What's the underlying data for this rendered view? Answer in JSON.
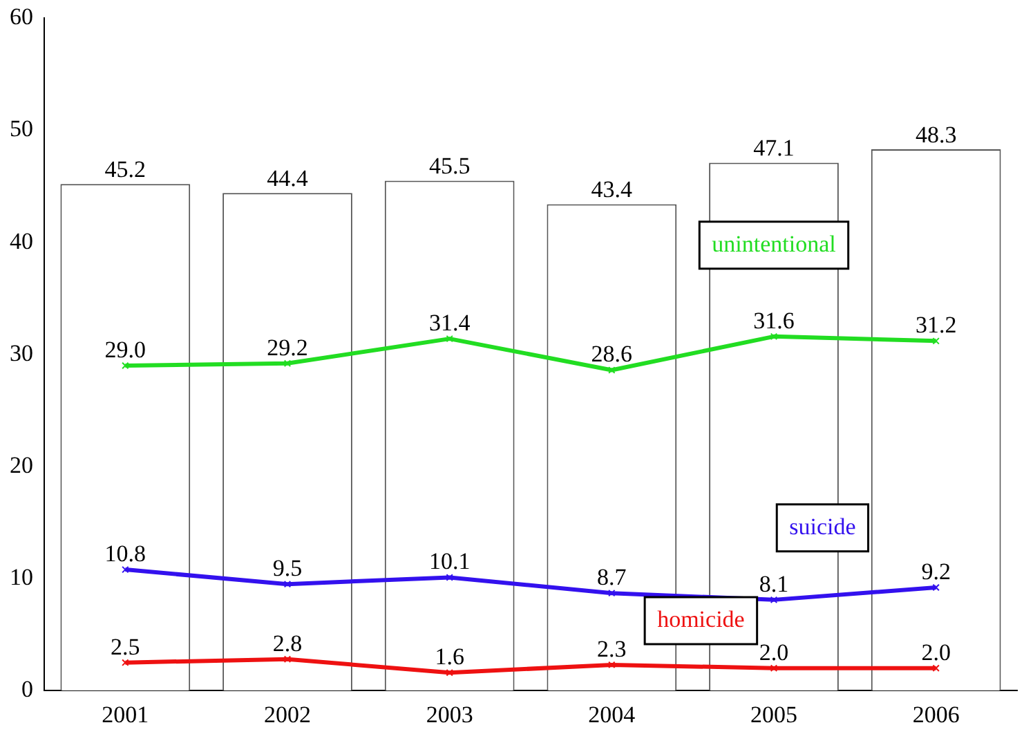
{
  "chart_data": {
    "type": "bar",
    "categories": [
      "2001",
      "2002",
      "2003",
      "2004",
      "2005",
      "2006"
    ],
    "series": [
      {
        "color": "#ffffff",
        "values": [
          45.2,
          44.4,
          45.5,
          43.4,
          47.1,
          48.3
        ],
        "value_labels": [
          "45.2",
          "44.4",
          "45.5",
          "43.4",
          "47.1",
          "48.3"
        ]
      },
      {
        "type": "line",
        "name": "unintentional",
        "color": "#22dd22",
        "values": [
          29.0,
          29.2,
          31.4,
          28.6,
          31.6,
          31.2
        ],
        "value_labels": [
          "29.0",
          "29.2",
          "31.4",
          "28.6",
          "31.6",
          "31.2"
        ]
      },
      {
        "type": "line",
        "name": "suicide",
        "color": "#3311ee",
        "values": [
          10.8,
          9.5,
          10.1,
          8.7,
          8.1,
          9.2
        ],
        "value_labels": [
          "10.8",
          "9.5",
          "10.1",
          "8.7",
          "8.1",
          "9.2"
        ]
      },
      {
        "type": "line",
        "name": "homicide",
        "color": "#ee1111",
        "values": [
          2.5,
          2.8,
          1.6,
          2.3,
          2.0,
          2.0
        ],
        "value_labels": [
          "2.5",
          "2.8",
          "1.6",
          "2.3",
          "2.0",
          "2.0"
        ]
      }
    ],
    "ylim": [
      0,
      60
    ],
    "yticks": [
      0,
      10,
      20,
      30,
      40,
      50,
      60
    ],
    "grid": false,
    "legend": false,
    "marker": "cross",
    "line_style": "solid"
  }
}
